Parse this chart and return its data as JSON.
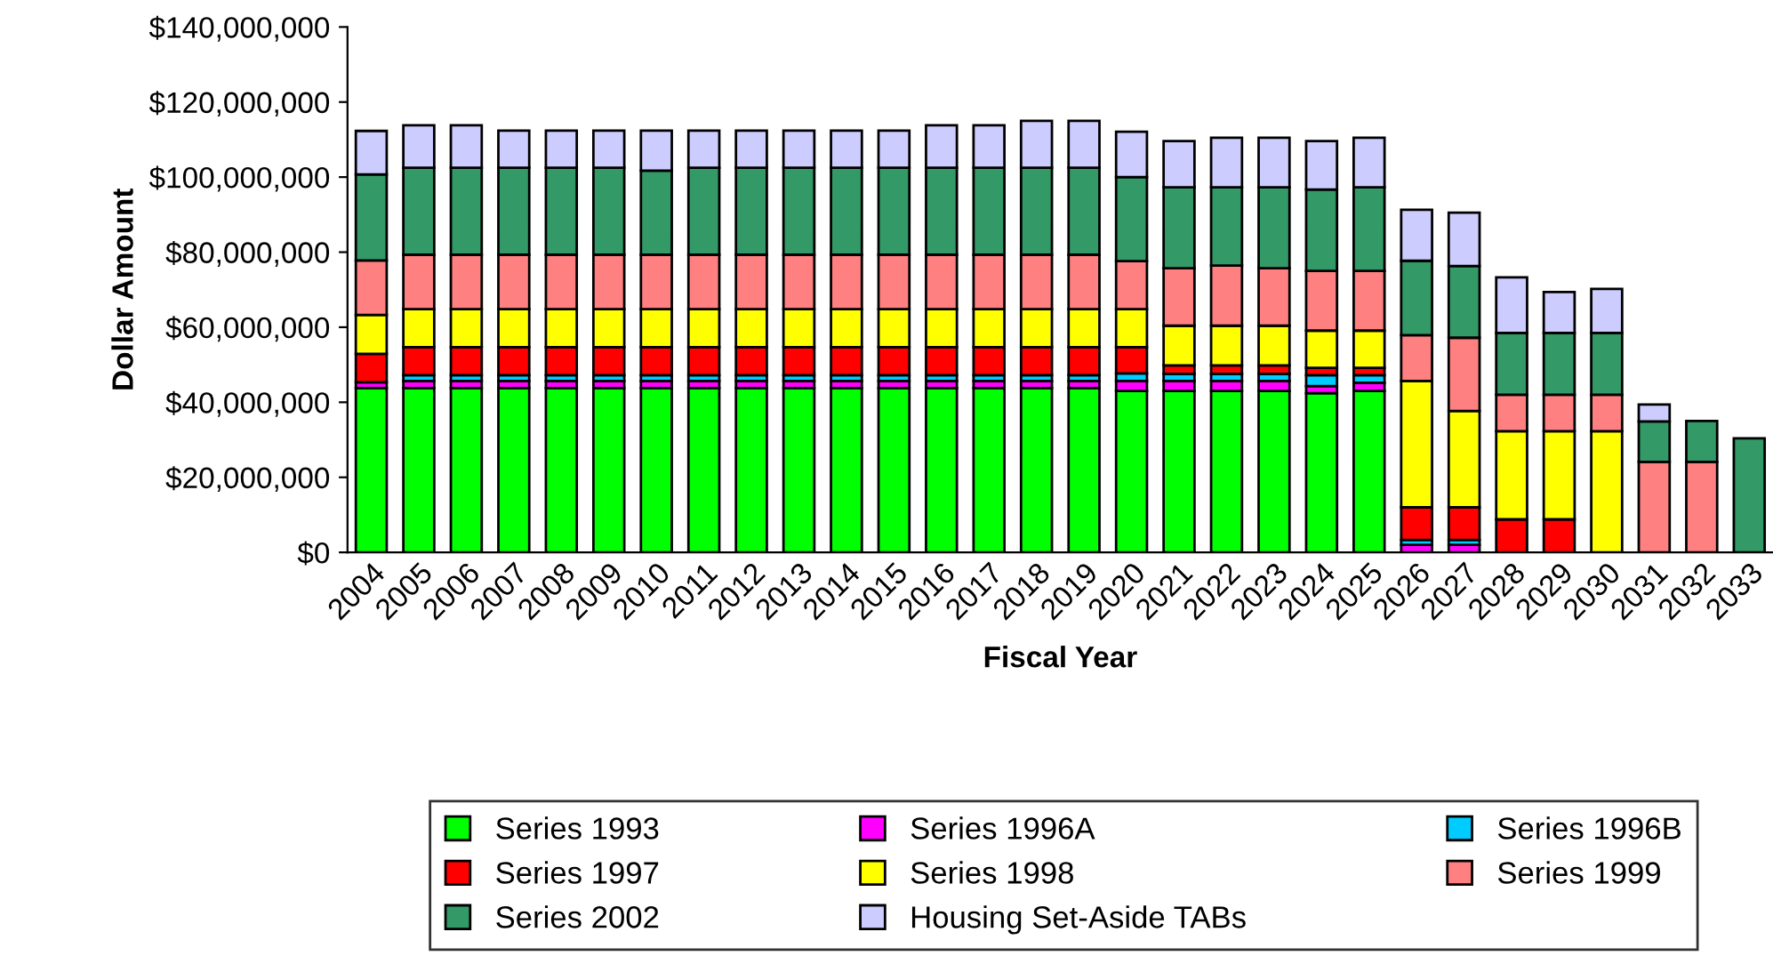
{
  "chart_data": {
    "type": "bar",
    "stacked": true,
    "xlabel": "Fiscal Year",
    "ylabel": "Dollar Amount",
    "categories": [
      "2004",
      "2005",
      "2006",
      "2007",
      "2008",
      "2009",
      "2010",
      "2011",
      "2012",
      "2013",
      "2014",
      "2015",
      "2016",
      "2017",
      "2018",
      "2019",
      "2020",
      "2021",
      "2022",
      "2023",
      "2024",
      "2025",
      "2026",
      "2027",
      "2028",
      "2029",
      "2030",
      "2031",
      "2032",
      "2033"
    ],
    "series": [
      {
        "name": "Series 1993",
        "color": "#00ff00",
        "values": [
          43800000,
          43800000,
          43800000,
          43800000,
          43800000,
          43800000,
          43800000,
          43800000,
          43800000,
          43800000,
          43800000,
          43800000,
          43800000,
          43800000,
          43800000,
          43800000,
          43000000,
          43000000,
          43000000,
          43000000,
          42400000,
          43000000,
          0,
          0,
          0,
          0,
          0,
          0,
          0,
          0
        ]
      },
      {
        "name": "Series 1996A",
        "color": "#ff00ff",
        "values": [
          1500000,
          1900000,
          1900000,
          1900000,
          1900000,
          1900000,
          1900000,
          1900000,
          1900000,
          1900000,
          1900000,
          1900000,
          1900000,
          1900000,
          1900000,
          1900000,
          2700000,
          2700000,
          2700000,
          2700000,
          1900000,
          2200000,
          2000000,
          2000000,
          0,
          0,
          0,
          0,
          0,
          0
        ]
      },
      {
        "name": "Series 1996B",
        "color": "#00ccff",
        "values": [
          null,
          1500000,
          1500000,
          1500000,
          1500000,
          1500000,
          1500000,
          1500000,
          1500000,
          1500000,
          1500000,
          1500000,
          1500000,
          1500000,
          1500000,
          1500000,
          2000000,
          1900000,
          1900000,
          1900000,
          2900000,
          2000000,
          1300000,
          1300000,
          0,
          0,
          0,
          0,
          0,
          0
        ]
      },
      {
        "name": "Series 1997",
        "color": "#ff0000",
        "values": [
          7600000,
          7500000,
          7500000,
          7500000,
          7500000,
          7500000,
          7500000,
          7500000,
          7500000,
          7500000,
          7500000,
          7500000,
          7500000,
          7500000,
          7500000,
          7500000,
          7000000,
          2200000,
          2200000,
          2200000,
          2000000,
          2000000,
          8700000,
          8700000,
          8800000,
          8800000,
          0,
          0,
          0,
          0
        ]
      },
      {
        "name": "Series 1998",
        "color": "#ffff00",
        "values": [
          10400000,
          10100000,
          10100000,
          10100000,
          10100000,
          10100000,
          10100000,
          10100000,
          10100000,
          10100000,
          10100000,
          10100000,
          10100000,
          10100000,
          10100000,
          10100000,
          10100000,
          10600000,
          10600000,
          10600000,
          9900000,
          9900000,
          33700000,
          25700000,
          23500000,
          23500000,
          32300000,
          0,
          0,
          0
        ]
      },
      {
        "name": "Series 1999",
        "color": "#ff8080",
        "values": [
          14500000,
          14500000,
          14500000,
          14500000,
          14500000,
          14500000,
          14500000,
          14500000,
          14500000,
          14500000,
          14500000,
          14500000,
          14500000,
          14500000,
          14500000,
          14500000,
          12800000,
          15300000,
          16000000,
          15300000,
          15900000,
          15900000,
          12200000,
          19500000,
          9700000,
          9700000,
          9700000,
          24100000,
          24100000,
          0
        ]
      },
      {
        "name": "Series 2002",
        "color": "#339966",
        "values": [
          22900000,
          23200000,
          23200000,
          23200000,
          23200000,
          23200000,
          22400000,
          23200000,
          23200000,
          23200000,
          23200000,
          23200000,
          23200000,
          23200000,
          23200000,
          23200000,
          22400000,
          21600000,
          20900000,
          21600000,
          21700000,
          22300000,
          19800000,
          19100000,
          16500000,
          16500000,
          16500000,
          10800000,
          10900000,
          30400000
        ]
      },
      {
        "name": "Housing Set-Aside TABs",
        "color": "#ccccff",
        "values": [
          11600000,
          11300000,
          11300000,
          9900000,
          9900000,
          9900000,
          10700000,
          9900000,
          9900000,
          9900000,
          9900000,
          9900000,
          11300000,
          11300000,
          12500000,
          12500000,
          12100000,
          12300000,
          13200000,
          13200000,
          12900000,
          13200000,
          13600000,
          14200000,
          14800000,
          10900000,
          11700000,
          4500000,
          0,
          0
        ]
      }
    ],
    "ylim": [
      0,
      140000000
    ],
    "yticks": [
      {
        "value": 0,
        "label": "$0"
      },
      {
        "value": 20000000,
        "label": "$20,000,000"
      },
      {
        "value": 40000000,
        "label": "$40,000,000"
      },
      {
        "value": 60000000,
        "label": "$60,000,000"
      },
      {
        "value": 80000000,
        "label": "$80,000,000"
      },
      {
        "value": 100000000,
        "label": "$100,000,000"
      },
      {
        "value": 120000000,
        "label": "$120,000,000"
      },
      {
        "value": 140000000,
        "label": "$140,000,000"
      }
    ],
    "grid": false,
    "legend": "bottom"
  }
}
